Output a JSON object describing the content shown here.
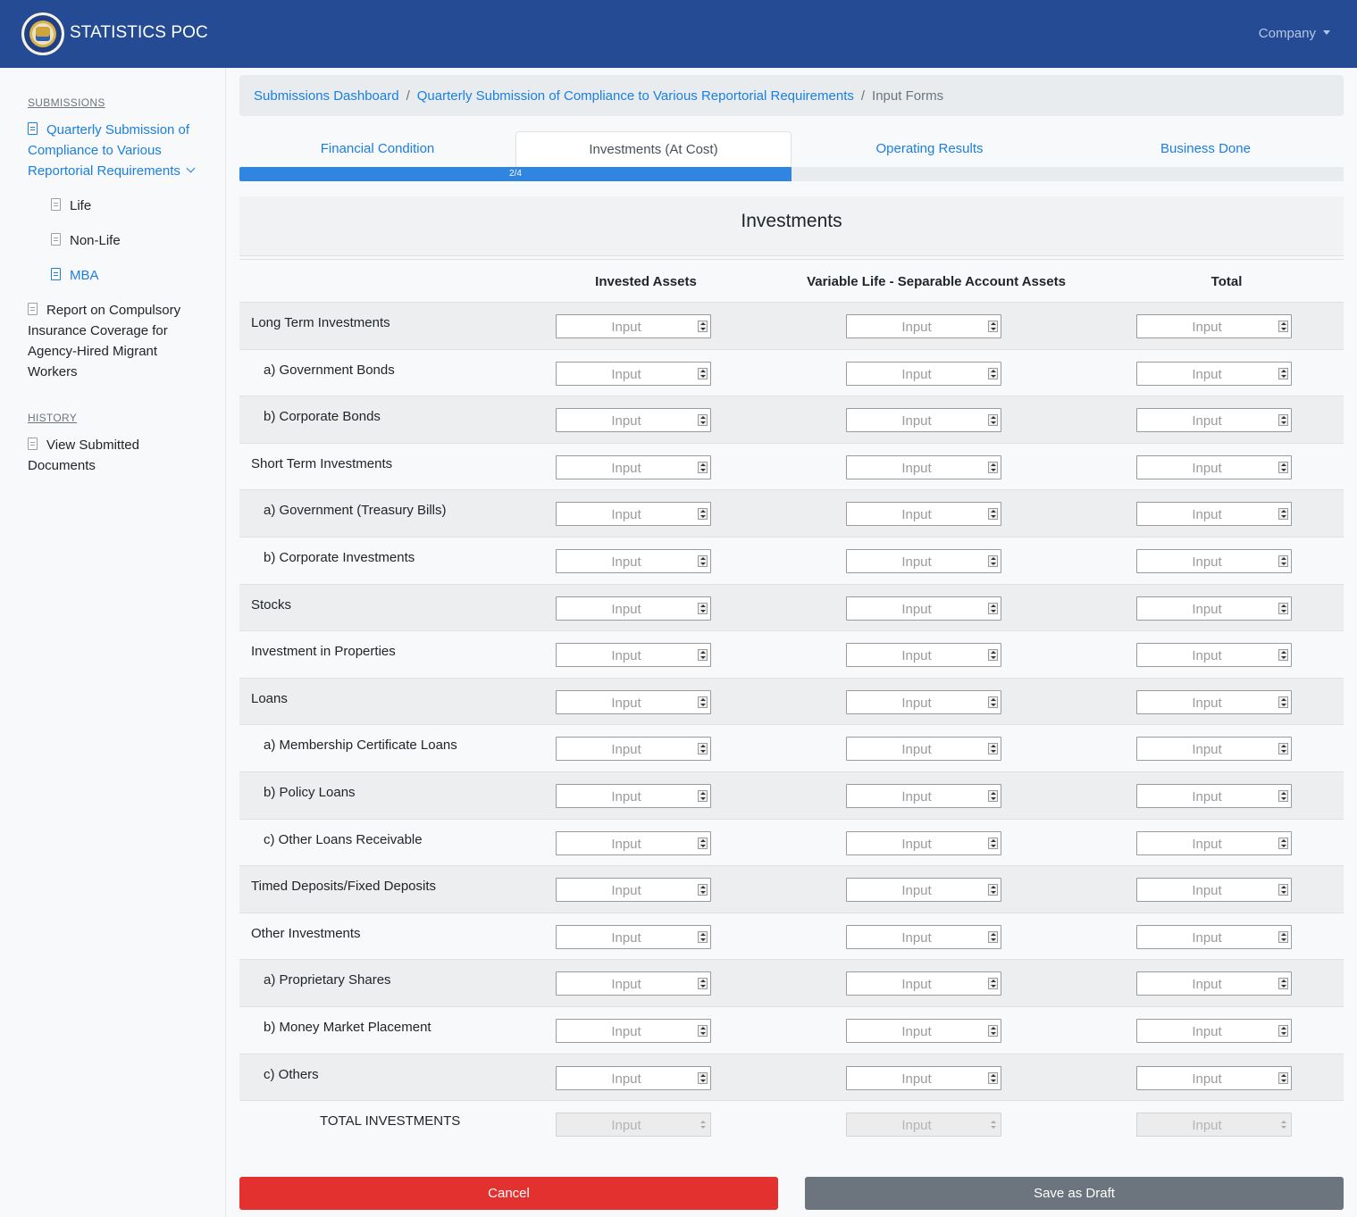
{
  "header": {
    "brand": "STATISTICS POC",
    "company_menu": "Company"
  },
  "sidebar": {
    "submissions_heading": "SUBMISSIONS",
    "quarterly_line1": "Quarterly Submission of",
    "quarterly_line2": "Compliance to Various",
    "quarterly_line3": "Reportorial Requirements",
    "sub_items": [
      "Life",
      "Non-Life",
      "MBA"
    ],
    "report_line1": "Report on Compulsory",
    "report_line2": "Insurance Coverage for",
    "report_line3": "Agency-Hired Migrant",
    "report_line4": "Workers",
    "history_heading": "HISTORY",
    "view_line1": "View Submitted",
    "view_line2": "Documents"
  },
  "breadcrumb": {
    "items": [
      "Submissions Dashboard",
      "Quarterly Submission of Compliance to Various Reportorial Requirements"
    ],
    "current": "Input Forms",
    "separator": "/"
  },
  "tabs": [
    "Financial Condition",
    "Investments (At Cost)",
    "Operating Results",
    "Business Done"
  ],
  "progress": {
    "label": "2/4",
    "fraction": 0.5
  },
  "form": {
    "title": "Investments",
    "columns": [
      "Invested Assets",
      "Variable Life - Separable Account Assets",
      "Total"
    ],
    "placeholder": "Input",
    "rows": [
      "Long Term Investments",
      "a) Government Bonds",
      "b) Corporate Bonds",
      "Short Term Investments",
      "a) Government (Treasury Bills)",
      "b) Corporate Investments",
      "Stocks",
      "Investment in Properties",
      "Loans",
      "a) Membership Certificate Loans",
      "b) Policy Loans",
      "c) Other Loans Receivable",
      "Timed Deposits/Fixed Deposits",
      "Other Investments",
      "a) Proprietary Shares",
      "b) Money Market Placement",
      "c) Others"
    ],
    "total_row": "TOTAL INVESTMENTS"
  },
  "buttons": {
    "cancel": "Cancel",
    "save_draft": "Save as Draft"
  },
  "colors": {
    "topbar": "#244b94",
    "accent": "#1b7fe0",
    "cancel": "#e3312f",
    "draft": "#6c757d"
  }
}
